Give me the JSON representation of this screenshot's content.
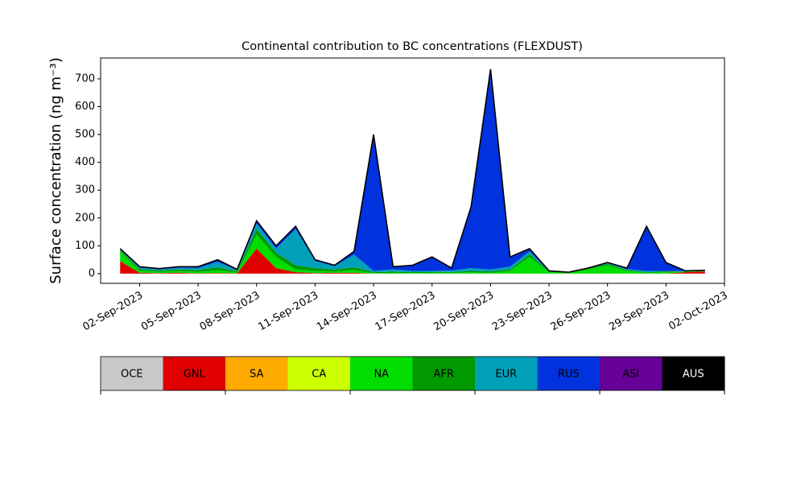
{
  "chart_data": {
    "type": "stacked_area",
    "title": "Continental contribution to BC concentrations (FLEXDUST)",
    "y_label": "Surface concentration (ng m⁻³)",
    "x": [
      "2023-09-01",
      "2023-09-02",
      "2023-09-03",
      "2023-09-04",
      "2023-09-05",
      "2023-09-06",
      "2023-09-07",
      "2023-09-08",
      "2023-09-09",
      "2023-09-10",
      "2023-09-11",
      "2023-09-12",
      "2023-09-13",
      "2023-09-14",
      "2023-09-15",
      "2023-09-16",
      "2023-09-17",
      "2023-09-18",
      "2023-09-19",
      "2023-09-20",
      "2023-09-21",
      "2023-09-22",
      "2023-09-23",
      "2023-09-24",
      "2023-09-25",
      "2023-09-26",
      "2023-09-27",
      "2023-09-28",
      "2023-09-29",
      "2023-09-30",
      "2023-10-01"
    ],
    "series": [
      {
        "name": "OCE",
        "color": "#c8c8c8",
        "values": [
          0,
          0,
          0,
          0,
          0,
          0,
          0,
          0,
          0,
          0,
          0,
          0,
          0,
          0,
          0,
          0,
          0,
          0,
          0,
          0,
          0,
          0,
          0,
          0,
          0,
          0,
          0,
          0,
          0,
          0,
          0
        ]
      },
      {
        "name": "GNL",
        "color": "#e00000",
        "values": [
          45,
          3,
          2,
          3,
          1,
          2,
          1,
          90,
          20,
          5,
          2,
          3,
          3,
          0,
          0,
          0,
          0,
          0,
          0,
          0,
          0,
          0,
          0,
          0,
          0,
          0,
          0,
          0,
          0,
          5,
          8
        ]
      },
      {
        "name": "SA",
        "color": "#ffaa00",
        "values": [
          0,
          0,
          0,
          0,
          0,
          0,
          0,
          0,
          0,
          0,
          0,
          0,
          0,
          0,
          0,
          0,
          0,
          0,
          0,
          0,
          0,
          0,
          0,
          0,
          0,
          0,
          0,
          0,
          0,
          0,
          0
        ]
      },
      {
        "name": "CA",
        "color": "#ccff00",
        "values": [
          0,
          0,
          0,
          0,
          0,
          0,
          0,
          0,
          0,
          0,
          0,
          0,
          0,
          0,
          0,
          0,
          0,
          0,
          0,
          0,
          0,
          0,
          0,
          0,
          0,
          0,
          0,
          0,
          0,
          0,
          0
        ]
      },
      {
        "name": "NA",
        "color": "#00dd00",
        "values": [
          35,
          8,
          5,
          6,
          6,
          10,
          4,
          50,
          40,
          10,
          8,
          5,
          10,
          2,
          3,
          2,
          3,
          3,
          5,
          3,
          10,
          60,
          5,
          3,
          15,
          30,
          10,
          3,
          5,
          2,
          2
        ]
      },
      {
        "name": "AFR",
        "color": "#009900",
        "values": [
          5,
          5,
          4,
          6,
          6,
          10,
          4,
          20,
          15,
          15,
          10,
          7,
          10,
          3,
          4,
          3,
          3,
          3,
          5,
          5,
          5,
          10,
          2,
          1,
          3,
          5,
          3,
          2,
          3,
          1,
          1
        ]
      },
      {
        "name": "EUR",
        "color": "#00a0b8",
        "values": [
          3,
          5,
          4,
          6,
          7,
          20,
          4,
          20,
          15,
          130,
          25,
          12,
          45,
          5,
          8,
          5,
          4,
          5,
          10,
          7,
          10,
          10,
          2,
          1,
          1,
          3,
          3,
          5,
          2,
          1,
          1
        ]
      },
      {
        "name": "RUS",
        "color": "#0033dd",
        "values": [
          2,
          4,
          3,
          4,
          5,
          8,
          2,
          10,
          10,
          10,
          5,
          3,
          12,
          490,
          10,
          20,
          50,
          9,
          220,
          720,
          35,
          10,
          1,
          0,
          1,
          2,
          4,
          160,
          30,
          1,
          0
        ]
      },
      {
        "name": "ASI",
        "color": "#660099",
        "values": [
          0,
          0,
          0,
          0,
          0,
          0,
          0,
          0,
          0,
          0,
          0,
          0,
          0,
          0,
          0,
          0,
          0,
          0,
          0,
          0,
          0,
          0,
          0,
          0,
          0,
          0,
          0,
          0,
          0,
          0,
          0
        ]
      },
      {
        "name": "AUS",
        "color": "#000000",
        "values": [
          0,
          0,
          0,
          0,
          0,
          0,
          0,
          0,
          0,
          0,
          0,
          0,
          0,
          0,
          0,
          0,
          0,
          0,
          0,
          0,
          0,
          0,
          0,
          0,
          0,
          0,
          0,
          0,
          0,
          0,
          0
        ]
      }
    ],
    "xlim": [
      "2023-08-31",
      "2023-10-02"
    ],
    "xticks": [
      {
        "value": "2023-09-02",
        "label": "02-Sep-2023"
      },
      {
        "value": "2023-09-05",
        "label": "05-Sep-2023"
      },
      {
        "value": "2023-09-08",
        "label": "08-Sep-2023"
      },
      {
        "value": "2023-09-11",
        "label": "11-Sep-2023"
      },
      {
        "value": "2023-09-14",
        "label": "14-Sep-2023"
      },
      {
        "value": "2023-09-17",
        "label": "17-Sep-2023"
      },
      {
        "value": "2023-09-20",
        "label": "20-Sep-2023"
      },
      {
        "value": "2023-09-23",
        "label": "23-Sep-2023"
      },
      {
        "value": "2023-09-26",
        "label": "26-Sep-2023"
      },
      {
        "value": "2023-09-29",
        "label": "29-Sep-2023"
      },
      {
        "value": "2023-10-02",
        "label": "02-Oct-2023"
      }
    ],
    "ylim": [
      -35,
      775
    ],
    "yticks": [
      0,
      100,
      200,
      300,
      400,
      500,
      600,
      700
    ],
    "legend": "colorbar-below"
  }
}
